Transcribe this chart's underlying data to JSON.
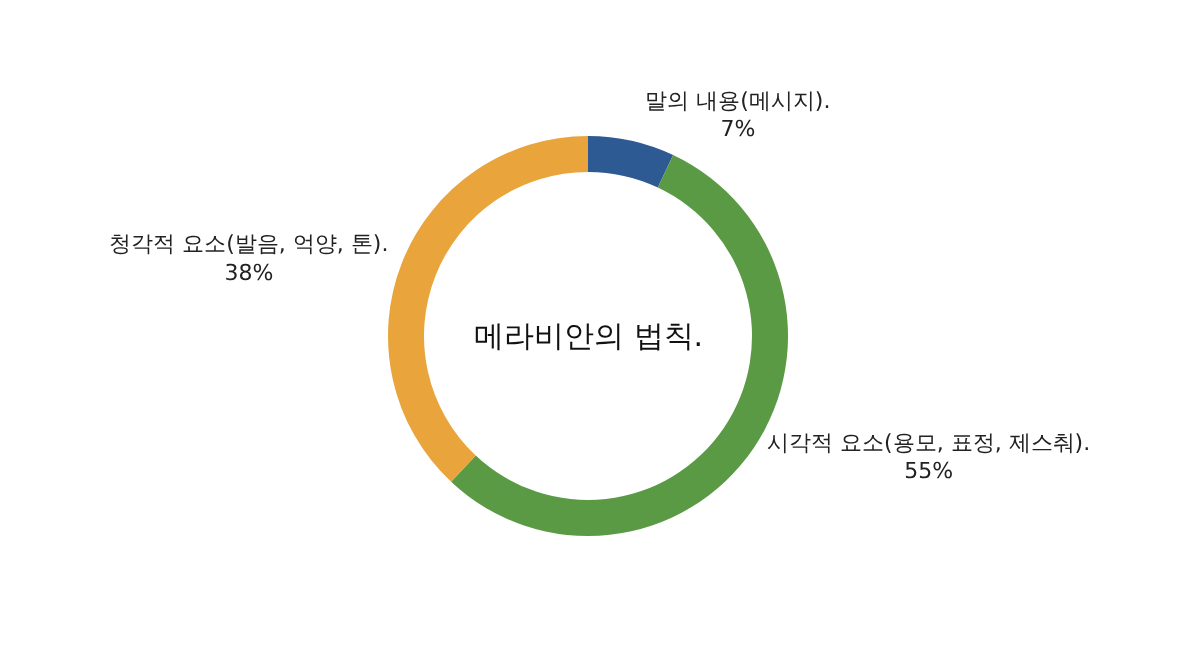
{
  "chart_data": {
    "type": "donut",
    "title": "메라비안의 법칙.",
    "categories": [
      "말의 내용(메시지).",
      "시각적 요소(용모, 표정, 제스춰).",
      "청각적 요소(발음, 억양, 톤)."
    ],
    "values": [
      7,
      55,
      38
    ],
    "value_labels": [
      "7%",
      "55%",
      "38%"
    ],
    "colors": [
      "#2e5a93",
      "#5b9a45",
      "#e9a43c"
    ],
    "legend": false
  }
}
